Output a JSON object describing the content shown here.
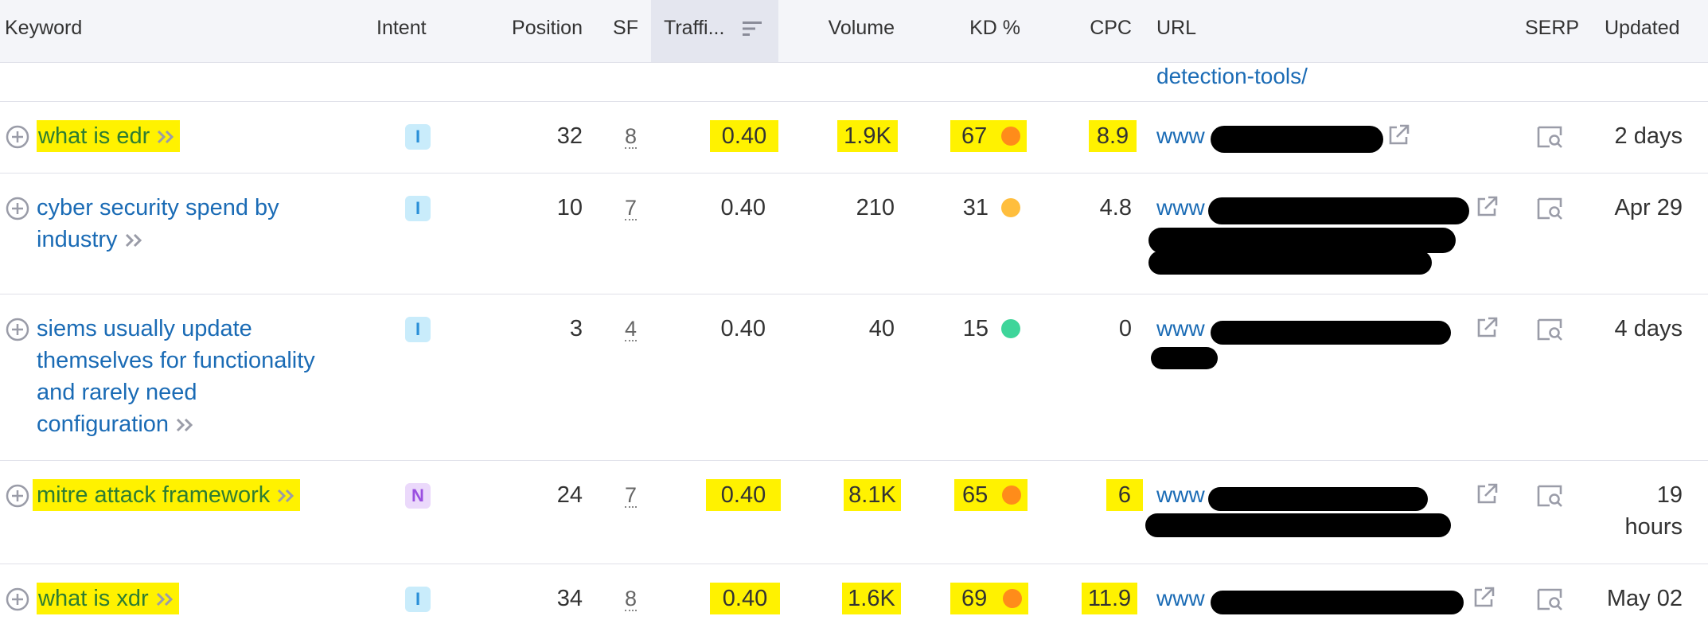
{
  "columns": {
    "keyword": "Keyword",
    "intent": "Intent",
    "position": "Position",
    "sf": "SF",
    "traffic": "Traffi...",
    "volume": "Volume",
    "kd": "KD %",
    "cpc": "CPC",
    "url": "URL",
    "serp": "SERP",
    "updated": "Updated"
  },
  "partial_row": {
    "url_tail": "detection-tools/"
  },
  "rows": [
    {
      "keyword_lines": [
        "what is edr"
      ],
      "intent": "I",
      "position": "32",
      "sf": "8",
      "traffic": "0.40",
      "volume": "1.9K",
      "kd": "67",
      "kd_color": "#ff8c1a",
      "cpc": "8.9",
      "url_prefix": "www",
      "updated": "2 days",
      "highlighted": true
    },
    {
      "keyword_lines": [
        "cyber security spend by",
        "industry"
      ],
      "intent": "I",
      "position": "10",
      "sf": "7",
      "traffic": "0.40",
      "volume": "210",
      "kd": "31",
      "kd_color": "#ffbe3d",
      "cpc": "4.8",
      "url_prefix": "www",
      "updated": "Apr 29",
      "highlighted": false
    },
    {
      "keyword_lines": [
        "siems usually update",
        "themselves for functionality",
        "and rarely need",
        "configuration"
      ],
      "intent": "I",
      "position": "3",
      "sf": "4",
      "traffic": "0.40",
      "volume": "40",
      "kd": "15",
      "kd_color": "#3ed59a",
      "cpc": "0",
      "url_prefix": "www",
      "updated": "4 days",
      "highlighted": false
    },
    {
      "keyword_lines": [
        "mitre attack framework"
      ],
      "intent": "N",
      "position": "24",
      "sf": "7",
      "traffic": "0.40",
      "volume": "8.1K",
      "kd": "65",
      "kd_color": "#ff8c1a",
      "cpc": "6",
      "url_prefix": "www",
      "updated_lines": [
        "19",
        "hours"
      ],
      "highlighted": true
    },
    {
      "keyword_lines": [
        "what is xdr"
      ],
      "intent": "I",
      "position": "34",
      "sf": "8",
      "traffic": "0.40",
      "volume": "1.6K",
      "kd": "69",
      "kd_color": "#ff8c1a",
      "cpc": "11.9",
      "url_prefix": "www",
      "updated": "May 02",
      "highlighted": true
    }
  ]
}
